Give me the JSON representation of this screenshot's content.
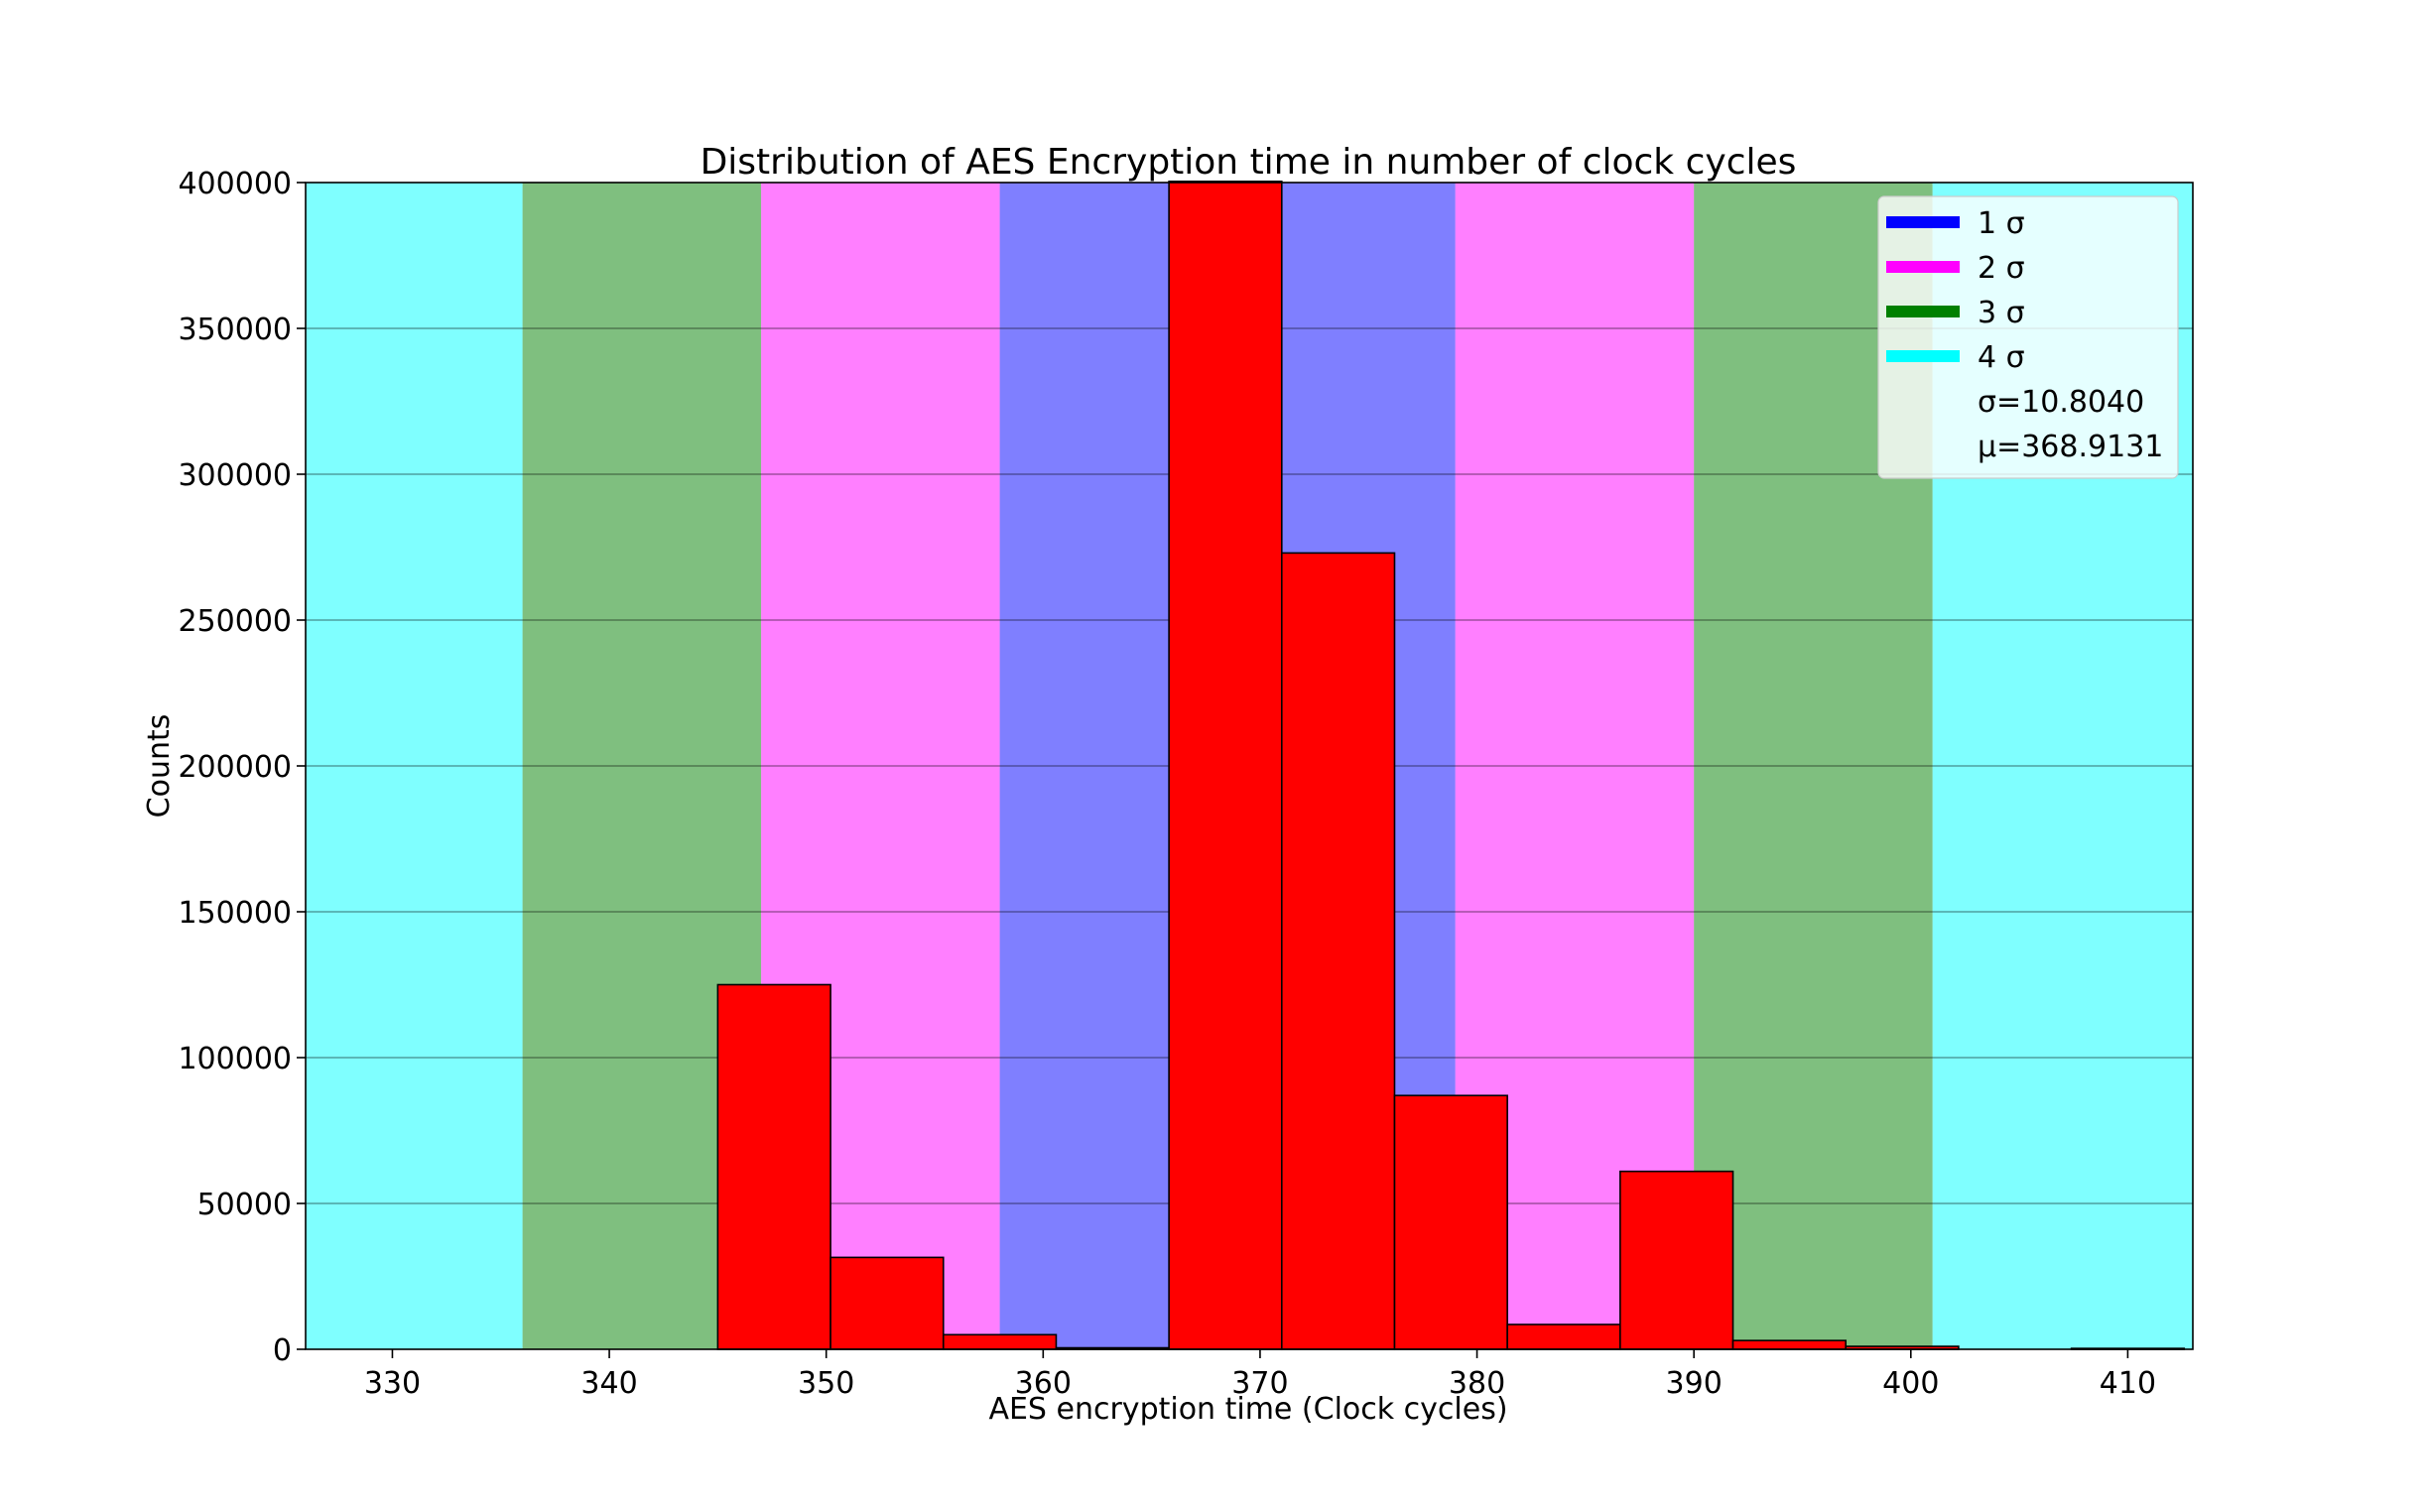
{
  "chart_data": {
    "type": "bar",
    "title": "Distribution of AES Encryption time in number of clock cycles",
    "xlabel": "AES encryption time (Clock cycles)",
    "ylabel": "Counts",
    "xlim": [
      326,
      413
    ],
    "ylim": [
      0,
      400000
    ],
    "xticks": [
      330,
      340,
      350,
      360,
      370,
      380,
      390,
      400,
      410
    ],
    "yticks": [
      0,
      50000,
      100000,
      150000,
      200000,
      250000,
      300000,
      350000,
      400000
    ],
    "grid": "horizontal",
    "legend_position": "top-right",
    "bar_color": "#ff0000",
    "bins": [
      {
        "x0": 345.0,
        "x1": 350.2,
        "value": 125000
      },
      {
        "x0": 350.2,
        "x1": 355.4,
        "value": 31500
      },
      {
        "x0": 355.4,
        "x1": 360.6,
        "value": 5000
      },
      {
        "x0": 360.6,
        "x1": 365.8,
        "value": 500
      },
      {
        "x0": 365.8,
        "x1": 371.0,
        "value": 401000
      },
      {
        "x0": 371.0,
        "x1": 376.2,
        "value": 273000
      },
      {
        "x0": 376.2,
        "x1": 381.4,
        "value": 87000
      },
      {
        "x0": 381.4,
        "x1": 386.6,
        "value": 8500
      },
      {
        "x0": 386.6,
        "x1": 391.8,
        "value": 61000
      },
      {
        "x0": 391.8,
        "x1": 397.0,
        "value": 3000
      },
      {
        "x0": 397.0,
        "x1": 402.2,
        "value": 1000
      },
      {
        "x0": 402.2,
        "x1": 407.4,
        "value": 0
      },
      {
        "x0": 407.4,
        "x1": 412.6,
        "value": 300
      }
    ],
    "sigma_bands": [
      {
        "label": "4 σ",
        "color": "#00ffff",
        "x0": 326,
        "x1": 336
      },
      {
        "label": "3 σ",
        "color": "#008000",
        "x0": 336,
        "x1": 347
      },
      {
        "label": "2 σ",
        "color": "#ff00ff",
        "x0": 347,
        "x1": 358
      },
      {
        "label": "1 σ",
        "color": "#0000ff",
        "x0": 358,
        "x1": 379
      },
      {
        "label": "2 σ",
        "color": "#ff00ff",
        "x0": 379,
        "x1": 390
      },
      {
        "label": "3 σ",
        "color": "#008000",
        "x0": 390,
        "x1": 401
      },
      {
        "label": "4 σ",
        "color": "#00ffff",
        "x0": 401,
        "x1": 413
      }
    ],
    "legend": [
      {
        "label": "1 σ",
        "color": "#0000ff"
      },
      {
        "label": "2 σ",
        "color": "#ff00ff"
      },
      {
        "label": "3 σ",
        "color": "#008000"
      },
      {
        "label": "4 σ",
        "color": "#00ffff"
      },
      {
        "label": "σ=10.8040",
        "color": ""
      },
      {
        "label": "μ=368.9131",
        "color": ""
      }
    ]
  }
}
